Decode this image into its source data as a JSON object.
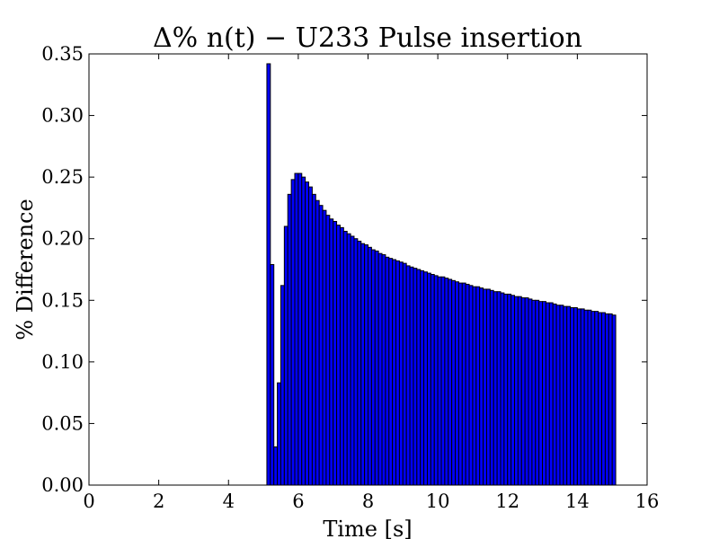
{
  "chart_data": {
    "type": "bar",
    "title": "Δ% n(t) − U233 Pulse insertion",
    "xlabel": "Time [s]",
    "ylabel": "% Difference",
    "xlim": [
      0,
      16
    ],
    "ylim": [
      0,
      0.35
    ],
    "xticks": [
      0,
      2,
      4,
      6,
      8,
      10,
      12,
      14,
      16
    ],
    "xtick_labels": [
      "0",
      "2",
      "4",
      "6",
      "8",
      "10",
      "12",
      "14",
      "16"
    ],
    "yticks": [
      0.0,
      0.05,
      0.1,
      0.15,
      0.2,
      0.25,
      0.3,
      0.35
    ],
    "ytick_labels": [
      "0.00",
      "0.05",
      "0.10",
      "0.15",
      "0.20",
      "0.25",
      "0.30",
      "0.35"
    ],
    "bar_width": 0.1,
    "x": [
      5.1,
      5.2,
      5.3,
      5.4,
      5.5,
      5.6,
      5.7,
      5.8,
      5.9,
      6.0,
      6.1,
      6.2,
      6.3,
      6.4,
      6.5,
      6.6,
      6.7,
      6.8,
      6.9,
      7.0,
      7.1,
      7.2,
      7.3,
      7.4,
      7.5,
      7.6,
      7.7,
      7.8,
      7.9,
      8.0,
      8.1,
      8.2,
      8.3,
      8.4,
      8.5,
      8.6,
      8.7,
      8.8,
      8.9,
      9.0,
      9.1,
      9.2,
      9.3,
      9.4,
      9.5,
      9.6,
      9.7,
      9.8,
      9.9,
      10.0,
      10.1,
      10.2,
      10.3,
      10.4,
      10.5,
      10.6,
      10.7,
      10.8,
      10.9,
      11.0,
      11.1,
      11.2,
      11.3,
      11.4,
      11.5,
      11.6,
      11.7,
      11.8,
      11.9,
      12.0,
      12.1,
      12.2,
      12.3,
      12.4,
      12.5,
      12.6,
      12.7,
      12.8,
      12.9,
      13.0,
      13.1,
      13.2,
      13.3,
      13.4,
      13.5,
      13.6,
      13.7,
      13.8,
      13.9,
      14.0,
      14.1,
      14.2,
      14.3,
      14.4,
      14.5,
      14.6,
      14.7,
      14.8,
      14.9,
      15.0
    ],
    "values": [
      0.342,
      0.179,
      0.031,
      0.083,
      0.162,
      0.21,
      0.236,
      0.248,
      0.253,
      0.253,
      0.25,
      0.246,
      0.242,
      0.236,
      0.231,
      0.227,
      0.223,
      0.219,
      0.216,
      0.214,
      0.211,
      0.209,
      0.206,
      0.204,
      0.202,
      0.2,
      0.198,
      0.196,
      0.195,
      0.193,
      0.191,
      0.19,
      0.188,
      0.187,
      0.185,
      0.184,
      0.183,
      0.182,
      0.181,
      0.18,
      0.178,
      0.177,
      0.176,
      0.175,
      0.174,
      0.173,
      0.172,
      0.171,
      0.17,
      0.169,
      0.169,
      0.168,
      0.167,
      0.166,
      0.165,
      0.164,
      0.164,
      0.163,
      0.162,
      0.161,
      0.161,
      0.16,
      0.159,
      0.159,
      0.158,
      0.157,
      0.157,
      0.156,
      0.155,
      0.155,
      0.154,
      0.153,
      0.153,
      0.152,
      0.152,
      0.151,
      0.15,
      0.15,
      0.149,
      0.149,
      0.148,
      0.148,
      0.147,
      0.146,
      0.146,
      0.145,
      0.145,
      0.144,
      0.144,
      0.143,
      0.143,
      0.142,
      0.142,
      0.141,
      0.141,
      0.14,
      0.14,
      0.139,
      0.139,
      0.138
    ]
  }
}
